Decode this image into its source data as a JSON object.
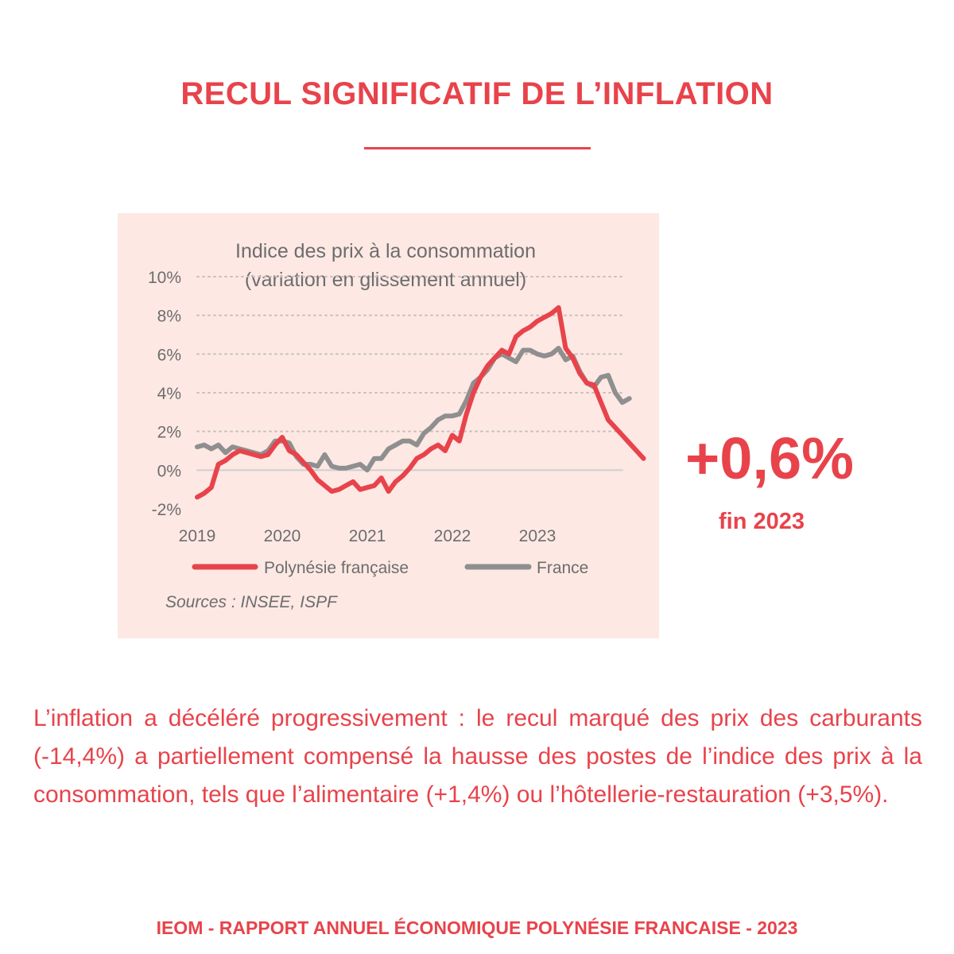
{
  "colors": {
    "accent": "#e8434b",
    "panel_bg": "#fde8e4",
    "series_pf": "#e8434b",
    "series_fr": "#8f8f8f",
    "chart_text": "#6d6d6d",
    "grid": "#c8c0be",
    "zero_line": "#cfcfcf"
  },
  "header": {
    "title": "RECUL SIGNIFICATIF DE L’INFLATION"
  },
  "kpi": {
    "value": "+0,6%",
    "label": "fin 2023"
  },
  "body": {
    "text": "L’inflation a décéléré progressivement : le recul marqué des prix des carburants (-14,4%) a partiellement compensé la hausse des postes de l’indice des prix à la consommation, tels que l’alimentaire (+1,4%) ou l’hôtellerie-restauration (+3,5%)."
  },
  "footer": {
    "text": "IEOM - RAPPORT ANNUEL ÉCONOMIQUE POLYNÉSIE FRANCAISE - 2023"
  },
  "chart_data": {
    "type": "line",
    "title_line1": "Indice des prix à la consommation",
    "title_line2": "(variation en glissement annuel)",
    "source": "Sources : INSEE, ISPF",
    "xlabel": "",
    "ylabel": "",
    "x_start": 2019,
    "x_step": 0.0833,
    "xlim": [
      2019,
      2024
    ],
    "ylim": [
      -2,
      10
    ],
    "y_ticks": [
      -2,
      0,
      2,
      4,
      6,
      8,
      10
    ],
    "y_tick_labels": [
      "-2%",
      "0%",
      "2%",
      "4%",
      "6%",
      "8%",
      "10%"
    ],
    "x_ticks": [
      2019,
      2020,
      2021,
      2022,
      2023
    ],
    "x_tick_labels": [
      "2019",
      "2020",
      "2021",
      "2022",
      "2023"
    ],
    "grid": true,
    "legend_position": "bottom",
    "series": [
      {
        "name": "Polynésie française",
        "values": [
          -1.4,
          -1.2,
          -0.9,
          0.3,
          0.5,
          0.8,
          1.0,
          0.9,
          0.8,
          0.7,
          0.8,
          1.3,
          1.7,
          1.0,
          0.8,
          0.4,
          0.0,
          -0.5,
          -0.8,
          -1.1,
          -1.0,
          -0.8,
          -0.6,
          -1.0,
          -0.9,
          -0.8,
          -0.4,
          -1.1,
          -0.6,
          -0.3,
          0.1,
          0.6,
          0.8,
          1.1,
          1.3,
          1.0,
          1.8,
          1.5,
          2.9,
          4.0,
          4.8,
          5.4,
          5.8,
          6.2,
          6.0,
          6.9,
          7.2,
          7.4,
          7.7,
          7.9,
          8.1,
          8.4,
          6.3,
          5.8,
          5.0,
          4.5,
          4.4,
          3.5,
          2.6,
          2.2,
          1.8,
          1.4,
          1.0,
          0.6
        ]
      },
      {
        "name": "France",
        "values": [
          1.2,
          1.3,
          1.1,
          1.3,
          0.9,
          1.2,
          1.1,
          1.0,
          0.9,
          0.8,
          1.0,
          1.5,
          1.5,
          1.4,
          0.7,
          0.3,
          0.3,
          0.2,
          0.8,
          0.2,
          0.1,
          0.1,
          0.2,
          0.3,
          0.0,
          0.6,
          0.6,
          1.1,
          1.3,
          1.5,
          1.5,
          1.3,
          1.9,
          2.2,
          2.6,
          2.8,
          2.8,
          2.9,
          3.6,
          4.5,
          4.8,
          5.2,
          5.8,
          6.0,
          5.8,
          5.6,
          6.2,
          6.2,
          6.0,
          5.9,
          6.0,
          6.3,
          5.7,
          5.9,
          5.1,
          4.5,
          4.3,
          4.8,
          4.9,
          4.0,
          3.5,
          3.7
        ]
      }
    ]
  }
}
